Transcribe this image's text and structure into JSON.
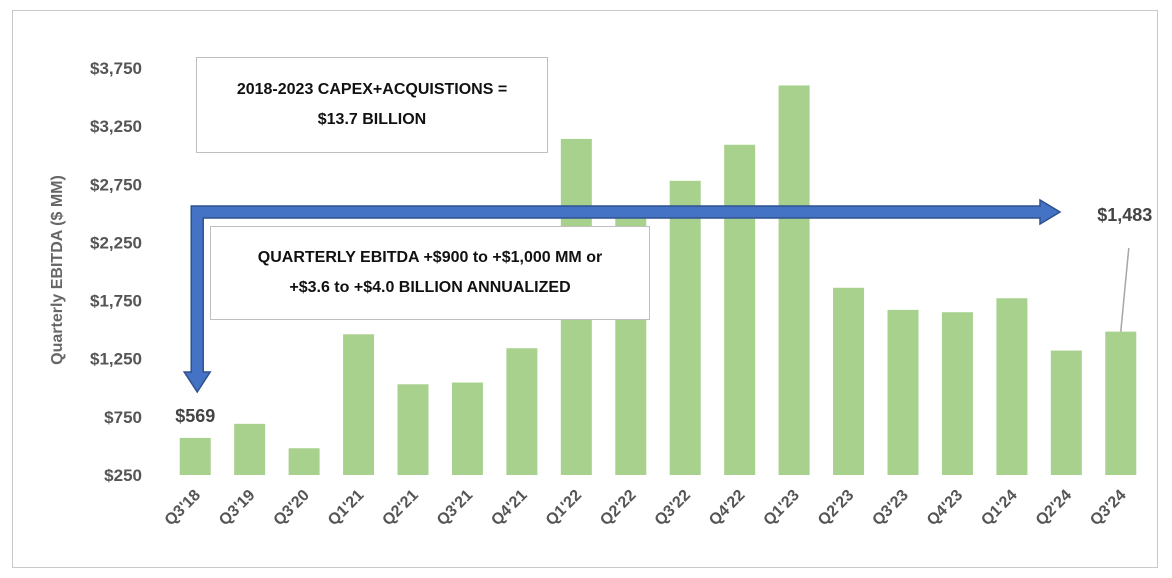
{
  "chart_data": {
    "type": "bar",
    "title": "",
    "xlabel": "",
    "ylabel": "Quarterly  EBITDA ($ MM)",
    "ylim": [
      250,
      3750
    ],
    "yticks": [
      250,
      750,
      1250,
      1750,
      2250,
      2750,
      3250,
      3750
    ],
    "ytick_labels": [
      "$250",
      "$750",
      "$1,250",
      "$1,750",
      "$2,250",
      "$2,750",
      "$3,250",
      "$3,750"
    ],
    "categories": [
      "Q3'18",
      "Q3'19",
      "Q3'20",
      "Q1'21",
      "Q2'21",
      "Q3'21",
      "Q4'21",
      "Q1'22",
      "Q2'22",
      "Q3'22",
      "Q4'22",
      "Q1'23",
      "Q2'23",
      "Q3'23",
      "Q4'23",
      "Q1'24",
      "Q2'24",
      "Q3'24"
    ],
    "values": [
      569,
      690,
      480,
      1460,
      1030,
      1045,
      1340,
      3140,
      2490,
      2780,
      3090,
      3600,
      1860,
      1670,
      1650,
      1770,
      1320,
      1483
    ],
    "bar_color": "#a9d18e",
    "data_labels": [
      {
        "category": "Q3'18",
        "text": "$569"
      },
      {
        "category": "Q3'24",
        "text": "$1,483"
      }
    ],
    "grid": false,
    "legend": "none"
  },
  "annotations": {
    "capex_box": {
      "line1": "2018-2023 CAPEX+ACQUISTIONS =",
      "line2": "$13.7 BILLION"
    },
    "ebitda_box": {
      "line1": "QUARTERLY EBITDA +$900 to +$1,000 MM or",
      "line2": "+$3.6 to +$4.0 BILLION ANNUALIZED"
    },
    "arrow_color": "#4472c4"
  }
}
